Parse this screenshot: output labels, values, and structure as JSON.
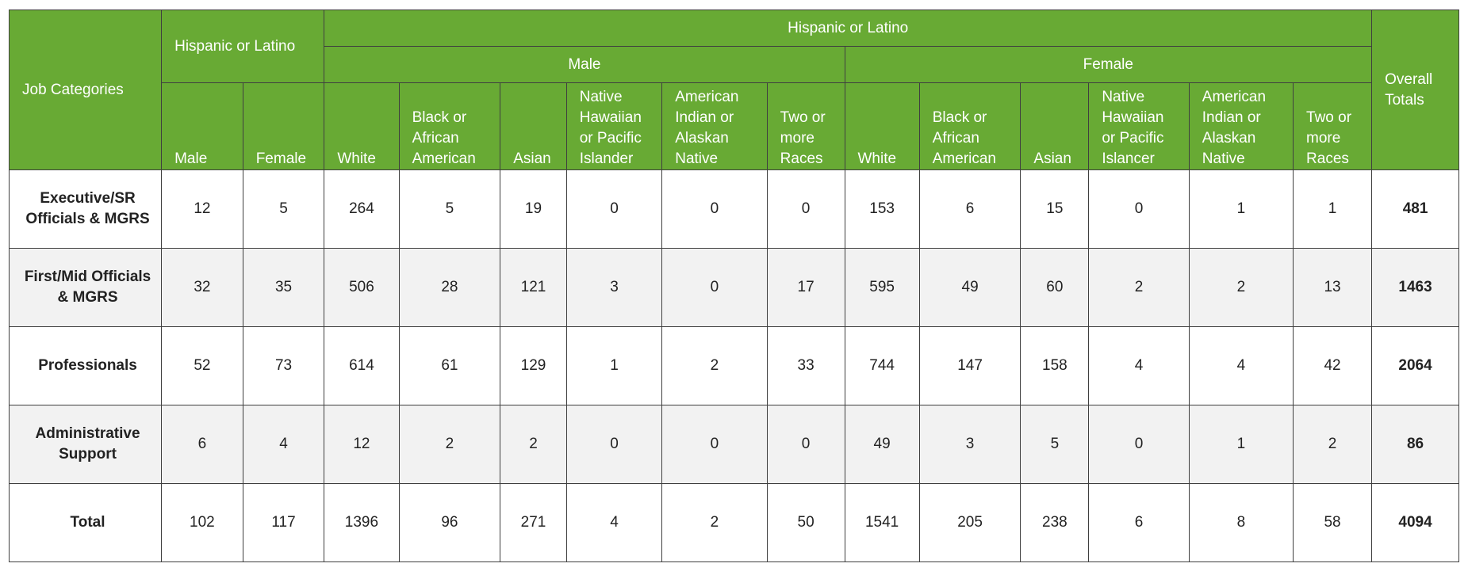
{
  "table": {
    "headers": {
      "job_categories": "Job Categories",
      "hispanic_group": "Hispanic or Latino",
      "non_hispanic_group": "Hispanic or Latino",
      "male_group": "Male",
      "female_group": "Female",
      "overall_totals": "Overall Totals",
      "hispanic_male": "Male",
      "hispanic_female": "Female",
      "male_subcolumns": [
        "White",
        "Black or African American",
        "Asian",
        "Native Hawaiian or Pacific Islander",
        "American Indian or Alaskan Native",
        "Two or more Races"
      ],
      "female_subcolumns": [
        "White",
        "Black or African American",
        "Asian",
        "Native Hawaiian or Pacific Islancer",
        "American Indian or Alaskan Native",
        "Two or more Races"
      ]
    },
    "rows": [
      {
        "category": "Executive/SR Officials & MGRS",
        "values": [
          "12",
          "5",
          "264",
          "5",
          "19",
          "0",
          "0",
          "0",
          "153",
          "6",
          "15",
          "0",
          "1",
          "1"
        ],
        "total": "481"
      },
      {
        "category": "First/Mid Officials & MGRS",
        "values": [
          "32",
          "35",
          "506",
          "28",
          "121",
          "3",
          "0",
          "17",
          "595",
          "49",
          "60",
          "2",
          "2",
          "13"
        ],
        "total": "1463"
      },
      {
        "category": "Professionals",
        "values": [
          "52",
          "73",
          "614",
          "61",
          "129",
          "1",
          "2",
          "33",
          "744",
          "147",
          "158",
          "4",
          "4",
          "42"
        ],
        "total": "2064"
      },
      {
        "category": "Administrative Support",
        "values": [
          "6",
          "4",
          "12",
          "2",
          "2",
          "0",
          "0",
          "0",
          "49",
          "3",
          "5",
          "0",
          "1",
          "2"
        ],
        "total": "86"
      },
      {
        "category": "Total",
        "values": [
          "102",
          "117",
          "1396",
          "96",
          "271",
          "4",
          "2",
          "50",
          "1541",
          "205",
          "238",
          "6",
          "8",
          "58"
        ],
        "total": "4094"
      }
    ]
  },
  "colors": {
    "header_background": "#68aa34",
    "header_text": "#ffffff",
    "row_alt_background": "#f2f2f2",
    "border": "#3f3f3f"
  }
}
